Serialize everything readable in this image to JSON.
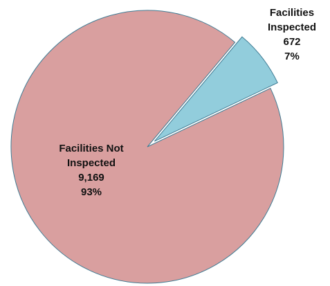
{
  "chart_data": {
    "type": "pie",
    "categories": [
      "Facilities Inspected",
      "Facilities Not Inspected"
    ],
    "values": [
      672,
      9169
    ],
    "value_labels": [
      "672",
      "9,169"
    ],
    "percent_labels": [
      "7%",
      "93%"
    ],
    "colors": [
      "#92cddc",
      "#d99f9f"
    ],
    "explode": [
      true,
      false
    ]
  }
}
